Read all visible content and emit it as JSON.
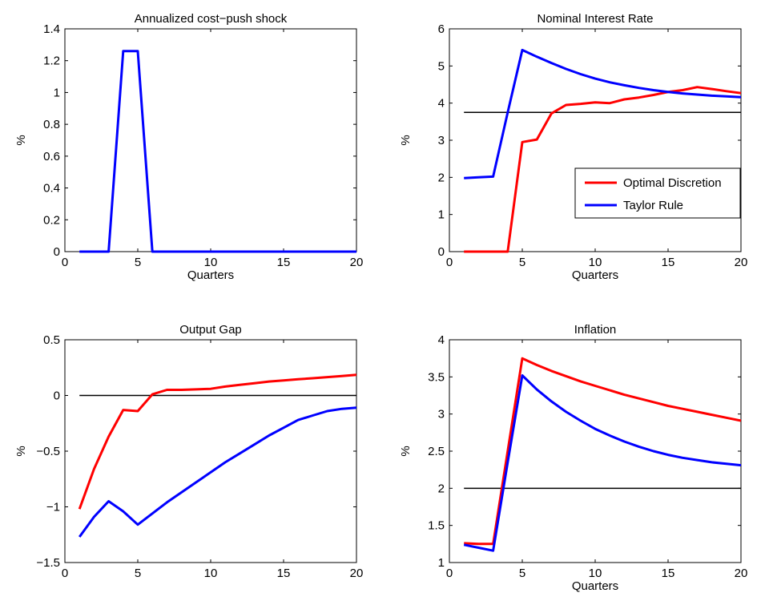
{
  "colors": {
    "optimal_discretion": "#ff0000",
    "taylor_rule": "#0000ff",
    "target_line": "#000000",
    "axes": "#000000",
    "background": "#ffffff"
  },
  "chart_data": [
    {
      "type": "line",
      "title": "Annualized cost−push shock",
      "xlabel": "Quarters",
      "ylabel": "%",
      "xlim": [
        0,
        20
      ],
      "ylim": [
        0,
        1.4
      ],
      "xticks": [
        0,
        5,
        10,
        15,
        20
      ],
      "xtick_labels": [
        "0",
        "5",
        "10",
        "15",
        "20"
      ],
      "yticks": [
        0,
        0.2,
        0.4,
        0.6,
        0.8,
        1,
        1.2,
        1.4
      ],
      "ytick_labels": [
        "0",
        "0.2",
        "0.4",
        "0.6",
        "0.8",
        "1",
        "1.2",
        "1.4"
      ],
      "grid": false,
      "legend": null,
      "reference_line": null,
      "series": [
        {
          "color": "#0000ff",
          "x": [
            1,
            2,
            3,
            4,
            5,
            6,
            7,
            8,
            9,
            10,
            11,
            12,
            13,
            14,
            15,
            16,
            17,
            18,
            19,
            20
          ],
          "y": [
            0,
            0,
            0,
            1.26,
            1.26,
            0,
            0,
            0,
            0,
            0,
            0,
            0,
            0,
            0,
            0,
            0,
            0,
            0,
            0,
            0
          ]
        }
      ]
    },
    {
      "type": "line",
      "title": "Nominal Interest Rate",
      "xlabel": "Quarters",
      "ylabel": "%",
      "xlim": [
        0,
        20
      ],
      "ylim": [
        0,
        6
      ],
      "xticks": [
        0,
        5,
        10,
        15,
        20
      ],
      "xtick_labels": [
        "0",
        "5",
        "10",
        "15",
        "20"
      ],
      "yticks": [
        0,
        1,
        2,
        3,
        4,
        5,
        6
      ],
      "ytick_labels": [
        "0",
        "1",
        "2",
        "3",
        "4",
        "5",
        "6"
      ],
      "grid": false,
      "legend": {
        "position": "center-right",
        "entries": [
          {
            "label": "Optimal Discretion",
            "color": "#ff0000"
          },
          {
            "label": "Taylor Rule",
            "color": "#0000ff"
          }
        ]
      },
      "reference_line": {
        "y": 3.75,
        "x_from": 1,
        "x_to": 20,
        "color": "#000000"
      },
      "series": [
        {
          "name": "Optimal Discretion",
          "color": "#ff0000",
          "x": [
            1,
            2,
            3,
            4,
            5,
            6,
            7,
            8,
            9,
            10,
            11,
            12,
            13,
            14,
            15,
            16,
            17,
            18,
            19,
            20
          ],
          "y": [
            0,
            0,
            0,
            0,
            2.95,
            3.02,
            3.72,
            3.95,
            3.98,
            4.02,
            4.0,
            4.1,
            4.15,
            4.22,
            4.3,
            4.35,
            4.43,
            4.38,
            4.32,
            4.27
          ]
        },
        {
          "name": "Taylor Rule",
          "color": "#0000ff",
          "x": [
            1,
            2,
            3,
            4,
            5,
            6,
            7,
            8,
            9,
            10,
            11,
            12,
            13,
            14,
            15,
            16,
            17,
            18,
            19,
            20
          ],
          "y": [
            1.98,
            2.0,
            2.02,
            3.75,
            5.43,
            5.25,
            5.08,
            4.92,
            4.78,
            4.66,
            4.56,
            4.48,
            4.41,
            4.35,
            4.3,
            4.26,
            4.23,
            4.2,
            4.18,
            4.16
          ]
        }
      ]
    },
    {
      "type": "line",
      "title": "Output Gap",
      "xlabel": "",
      "ylabel": "%",
      "xlim": [
        0,
        20
      ],
      "ylim": [
        -1.5,
        0.5
      ],
      "xticks": [
        0,
        5,
        10,
        15,
        20
      ],
      "xtick_labels": [
        "0",
        "5",
        "10",
        "15",
        "20"
      ],
      "yticks": [
        -1.5,
        -1,
        -0.5,
        0,
        0.5
      ],
      "ytick_labels": [
        "−1.5",
        "−1",
        "−0.5",
        "0",
        "0.5"
      ],
      "grid": false,
      "legend": null,
      "reference_line": {
        "y": 0,
        "x_from": 1,
        "x_to": 20,
        "color": "#000000"
      },
      "series": [
        {
          "name": "Optimal Discretion",
          "color": "#ff0000",
          "x": [
            1,
            2,
            3,
            4,
            5,
            6,
            7,
            8,
            9,
            10,
            11,
            12,
            13,
            14,
            15,
            16,
            17,
            18,
            19,
            20
          ],
          "y": [
            -1.02,
            -0.66,
            -0.37,
            -0.13,
            -0.14,
            0.01,
            0.05,
            0.05,
            0.055,
            0.06,
            0.08,
            0.095,
            0.11,
            0.125,
            0.135,
            0.145,
            0.155,
            0.165,
            0.175,
            0.185
          ]
        },
        {
          "name": "Taylor Rule",
          "color": "#0000ff",
          "x": [
            1,
            2,
            3,
            4,
            5,
            6,
            7,
            8,
            9,
            10,
            11,
            12,
            13,
            14,
            15,
            16,
            17,
            18,
            19,
            20
          ],
          "y": [
            -1.27,
            -1.09,
            -0.95,
            -1.04,
            -1.16,
            -1.06,
            -0.96,
            -0.87,
            -0.78,
            -0.69,
            -0.6,
            -0.52,
            -0.44,
            -0.36,
            -0.29,
            -0.22,
            -0.18,
            -0.14,
            -0.12,
            -0.11
          ]
        }
      ]
    },
    {
      "type": "line",
      "title": "Inflation",
      "xlabel": "Quarters",
      "ylabel": "%",
      "xlim": [
        0,
        20
      ],
      "ylim": [
        1,
        4
      ],
      "xticks": [
        0,
        5,
        10,
        15,
        20
      ],
      "xtick_labels": [
        "0",
        "5",
        "10",
        "15",
        "20"
      ],
      "yticks": [
        1,
        1.5,
        2,
        2.5,
        3,
        3.5,
        4
      ],
      "ytick_labels": [
        "1",
        "1.5",
        "2",
        "2.5",
        "3",
        "3.5",
        "4"
      ],
      "grid": false,
      "legend": null,
      "reference_line": {
        "y": 2,
        "x_from": 1,
        "x_to": 20,
        "color": "#000000"
      },
      "series": [
        {
          "name": "Optimal Discretion",
          "color": "#ff0000",
          "x": [
            1,
            2,
            3,
            4,
            5,
            6,
            7,
            8,
            9,
            10,
            11,
            12,
            13,
            14,
            15,
            16,
            17,
            18,
            19,
            20
          ],
          "y": [
            1.26,
            1.25,
            1.25,
            2.5,
            3.75,
            3.66,
            3.58,
            3.51,
            3.44,
            3.38,
            3.32,
            3.26,
            3.21,
            3.16,
            3.11,
            3.07,
            3.03,
            2.99,
            2.95,
            2.91
          ]
        },
        {
          "name": "Taylor Rule",
          "color": "#0000ff",
          "x": [
            1,
            2,
            3,
            4,
            5,
            6,
            7,
            8,
            9,
            10,
            11,
            12,
            13,
            14,
            15,
            16,
            17,
            18,
            19,
            20
          ],
          "y": [
            1.24,
            1.2,
            1.16,
            2.35,
            3.52,
            3.33,
            3.17,
            3.03,
            2.91,
            2.8,
            2.71,
            2.63,
            2.56,
            2.5,
            2.45,
            2.41,
            2.38,
            2.35,
            2.33,
            2.31
          ]
        }
      ]
    }
  ]
}
